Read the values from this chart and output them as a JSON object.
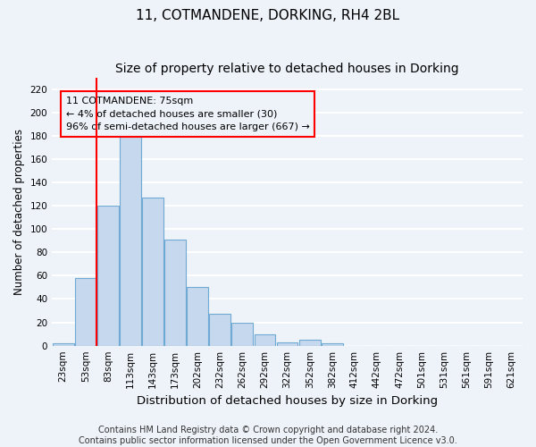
{
  "title1": "11, COTMANDENE, DORKING, RH4 2BL",
  "title2": "Size of property relative to detached houses in Dorking",
  "xlabel": "Distribution of detached houses by size in Dorking",
  "ylabel": "Number of detached properties",
  "categories": [
    "23sqm",
    "53sqm",
    "83sqm",
    "113sqm",
    "143sqm",
    "173sqm",
    "202sqm",
    "232sqm",
    "262sqm",
    "292sqm",
    "322sqm",
    "352sqm",
    "382sqm",
    "412sqm",
    "442sqm",
    "472sqm",
    "501sqm",
    "531sqm",
    "561sqm",
    "591sqm",
    "621sqm"
  ],
  "values": [
    2,
    58,
    120,
    180,
    127,
    91,
    50,
    27,
    20,
    10,
    3,
    5,
    2,
    0,
    0,
    0,
    0,
    0,
    0,
    0,
    0
  ],
  "bar_color": "#c5d8ed",
  "bar_edge_color": "#6eaad4",
  "vline_color": "red",
  "vline_x": 1.5,
  "annotation_text": "11 COTMANDENE: 75sqm\n← 4% of detached houses are smaller (30)\n96% of semi-detached houses are larger (667) →",
  "box_color": "red",
  "ylim": [
    0,
    230
  ],
  "yticks": [
    0,
    20,
    40,
    60,
    80,
    100,
    120,
    140,
    160,
    180,
    200,
    220
  ],
  "footer": "Contains HM Land Registry data © Crown copyright and database right 2024.\nContains public sector information licensed under the Open Government Licence v3.0.",
  "bg_color": "#eef2f9",
  "grid_color": "white",
  "title_fontsize": 11,
  "subtitle_fontsize": 10,
  "xlabel_fontsize": 9.5,
  "ylabel_fontsize": 8.5,
  "tick_fontsize": 7.5,
  "annotation_fontsize": 8,
  "footer_fontsize": 7
}
